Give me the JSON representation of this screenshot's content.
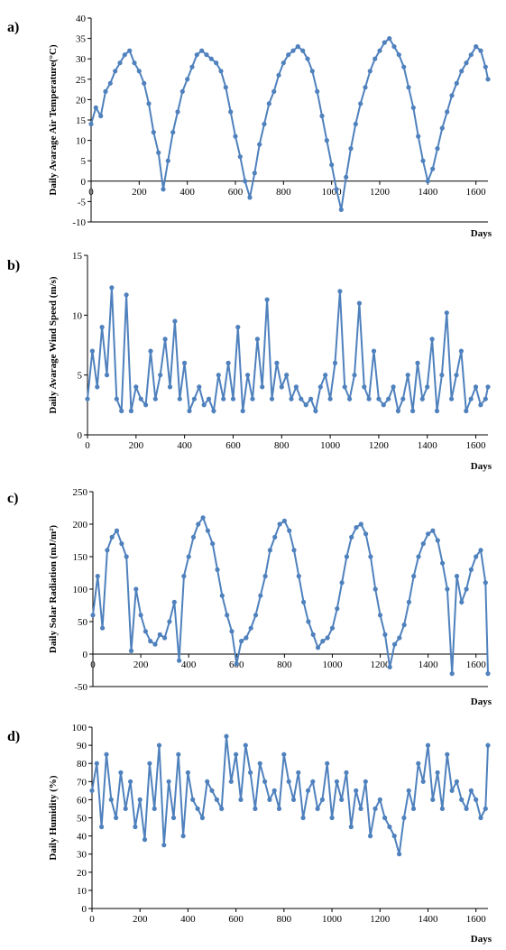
{
  "colors": {
    "series": "#4f81bd",
    "axis": "#000000"
  },
  "chart_data": [
    {
      "type": "line",
      "panel_label": "a)",
      "ylabel": "Daily Avarage Air Temperature(°C)",
      "xlabel": "Days",
      "xlim": [
        0,
        1650
      ],
      "ylim": [
        -10,
        40
      ],
      "xticks": [
        0,
        200,
        400,
        600,
        800,
        1000,
        1200,
        1400,
        1600
      ],
      "yticks": [
        -10,
        -5,
        0,
        5,
        10,
        15,
        20,
        25,
        30,
        35,
        40
      ],
      "zero_line": true,
      "series": [
        {
          "x": [
            0,
            20,
            40,
            60,
            80,
            100,
            120,
            140,
            160,
            180,
            200,
            220,
            240,
            260,
            280,
            300,
            320,
            340,
            360,
            380,
            400,
            420,
            440,
            460,
            480,
            500,
            520,
            540,
            560,
            580,
            600,
            620,
            640,
            660,
            680,
            700,
            720,
            740,
            760,
            780,
            800,
            820,
            840,
            860,
            880,
            900,
            920,
            940,
            960,
            980,
            1000,
            1020,
            1040,
            1060,
            1080,
            1100,
            1120,
            1140,
            1160,
            1180,
            1200,
            1220,
            1240,
            1260,
            1280,
            1300,
            1320,
            1340,
            1360,
            1380,
            1400,
            1420,
            1440,
            1460,
            1480,
            1500,
            1520,
            1540,
            1560,
            1580,
            1600,
            1620,
            1640,
            1650
          ],
          "y": [
            14,
            18,
            16,
            22,
            24,
            27,
            29,
            31,
            32,
            29,
            27,
            24,
            19,
            12,
            7,
            -2,
            5,
            12,
            17,
            22,
            25,
            28,
            31,
            32,
            31,
            30,
            29,
            27,
            23,
            17,
            11,
            6,
            0,
            -4,
            2,
            9,
            14,
            19,
            22,
            26,
            29,
            31,
            32,
            33,
            32,
            30,
            27,
            22,
            16,
            10,
            4,
            -2,
            -7,
            1,
            8,
            14,
            19,
            23,
            27,
            30,
            32,
            34,
            35,
            33,
            31,
            28,
            23,
            18,
            11,
            5,
            0,
            3,
            8,
            13,
            17,
            21,
            24,
            27,
            29,
            31,
            33,
            32,
            28,
            25
          ]
        }
      ]
    },
    {
      "type": "line",
      "panel_label": "b)",
      "ylabel": "Daily Avarage Wind Speed (m/s)",
      "xlabel": "Days",
      "xlim": [
        0,
        1650
      ],
      "ylim": [
        0,
        15
      ],
      "xticks": [
        0,
        200,
        400,
        600,
        800,
        1000,
        1200,
        1400,
        1600
      ],
      "yticks": [
        0,
        5,
        10,
        15
      ],
      "zero_line": false,
      "series": [
        {
          "x": [
            0,
            20,
            40,
            60,
            80,
            100,
            120,
            140,
            160,
            180,
            200,
            220,
            240,
            260,
            280,
            300,
            320,
            340,
            360,
            380,
            400,
            420,
            440,
            460,
            480,
            500,
            520,
            540,
            560,
            580,
            600,
            620,
            640,
            660,
            680,
            700,
            720,
            740,
            760,
            780,
            800,
            820,
            840,
            860,
            880,
            900,
            920,
            940,
            960,
            980,
            1000,
            1020,
            1040,
            1060,
            1080,
            1100,
            1120,
            1140,
            1160,
            1180,
            1200,
            1220,
            1240,
            1260,
            1280,
            1300,
            1320,
            1340,
            1360,
            1380,
            1400,
            1420,
            1440,
            1460,
            1480,
            1500,
            1520,
            1540,
            1560,
            1580,
            1600,
            1620,
            1640,
            1650
          ],
          "y": [
            3,
            7,
            4,
            9,
            5,
            12.3,
            3,
            2,
            11.7,
            2,
            4,
            3,
            2.5,
            7,
            3,
            5,
            8,
            4,
            9.5,
            3,
            6,
            2,
            3,
            4,
            2.5,
            3,
            2,
            5,
            3,
            6,
            3,
            9,
            2,
            5,
            3,
            8,
            4,
            11.3,
            3,
            6,
            4,
            5,
            3,
            4,
            3,
            2.5,
            3,
            2,
            4,
            5,
            3,
            6,
            12,
            4,
            3,
            5,
            11,
            4,
            3,
            7,
            3,
            2.5,
            3,
            4,
            2,
            3,
            5,
            2,
            6,
            3,
            4,
            8,
            2,
            5,
            10.2,
            3,
            5,
            7,
            2,
            3,
            4,
            2.5,
            3,
            4
          ]
        }
      ]
    },
    {
      "type": "line",
      "panel_label": "c)",
      "ylabel": "Daily Solar Radiation (mJ/m²)",
      "xlabel": "Days",
      "xlim": [
        0,
        1650
      ],
      "ylim": [
        -50,
        250
      ],
      "xticks": [
        0,
        200,
        400,
        600,
        800,
        1000,
        1200,
        1400,
        1600
      ],
      "yticks": [
        -50,
        0,
        50,
        100,
        150,
        200,
        250
      ],
      "zero_line": true,
      "series": [
        {
          "x": [
            0,
            20,
            40,
            60,
            80,
            100,
            120,
            140,
            160,
            180,
            200,
            220,
            240,
            260,
            280,
            300,
            320,
            340,
            360,
            380,
            400,
            420,
            440,
            460,
            480,
            500,
            520,
            540,
            560,
            580,
            600,
            620,
            640,
            660,
            680,
            700,
            720,
            740,
            760,
            780,
            800,
            820,
            840,
            860,
            880,
            900,
            920,
            940,
            960,
            980,
            1000,
            1020,
            1040,
            1060,
            1080,
            1100,
            1120,
            1140,
            1160,
            1180,
            1200,
            1220,
            1240,
            1260,
            1280,
            1300,
            1320,
            1340,
            1360,
            1380,
            1400,
            1420,
            1440,
            1460,
            1480,
            1500,
            1520,
            1540,
            1560,
            1580,
            1600,
            1620,
            1640,
            1650
          ],
          "y": [
            60,
            120,
            40,
            160,
            180,
            190,
            170,
            150,
            5,
            100,
            60,
            35,
            20,
            15,
            30,
            25,
            50,
            80,
            -10,
            120,
            150,
            180,
            200,
            210,
            190,
            170,
            130,
            90,
            60,
            35,
            -15,
            20,
            25,
            40,
            60,
            90,
            120,
            160,
            180,
            200,
            205,
            190,
            160,
            120,
            80,
            50,
            30,
            10,
            20,
            25,
            40,
            70,
            110,
            150,
            180,
            195,
            200,
            185,
            150,
            100,
            60,
            30,
            -20,
            15,
            25,
            45,
            80,
            120,
            150,
            170,
            185,
            190,
            175,
            140,
            100,
            -30,
            120,
            80,
            100,
            130,
            150,
            160,
            110,
            -30
          ]
        }
      ]
    },
    {
      "type": "line",
      "panel_label": "d)",
      "ylabel": "Daily Humidity (%)",
      "xlabel": "Days",
      "xlim": [
        0,
        1650
      ],
      "ylim": [
        0,
        100
      ],
      "xticks": [
        0,
        200,
        400,
        600,
        800,
        1000,
        1200,
        1400,
        1600
      ],
      "yticks": [
        0,
        10,
        20,
        30,
        40,
        50,
        60,
        70,
        80,
        90,
        100
      ],
      "zero_line": false,
      "series": [
        {
          "x": [
            0,
            20,
            40,
            60,
            80,
            100,
            120,
            140,
            160,
            180,
            200,
            220,
            240,
            260,
            280,
            300,
            320,
            340,
            360,
            380,
            400,
            420,
            440,
            460,
            480,
            500,
            520,
            540,
            560,
            580,
            600,
            620,
            640,
            660,
            680,
            700,
            720,
            740,
            760,
            780,
            800,
            820,
            840,
            860,
            880,
            900,
            920,
            940,
            960,
            980,
            1000,
            1020,
            1040,
            1060,
            1080,
            1100,
            1120,
            1140,
            1160,
            1180,
            1200,
            1220,
            1240,
            1260,
            1280,
            1300,
            1320,
            1340,
            1360,
            1380,
            1400,
            1420,
            1440,
            1460,
            1480,
            1500,
            1520,
            1540,
            1560,
            1580,
            1600,
            1620,
            1640,
            1650
          ],
          "y": [
            65,
            80,
            45,
            85,
            60,
            50,
            75,
            55,
            70,
            45,
            60,
            38,
            80,
            55,
            90,
            35,
            70,
            50,
            85,
            40,
            75,
            60,
            55,
            50,
            70,
            65,
            60,
            55,
            95,
            70,
            85,
            60,
            90,
            75,
            55,
            80,
            70,
            60,
            65,
            55,
            85,
            70,
            60,
            75,
            50,
            65,
            70,
            55,
            60,
            80,
            50,
            70,
            60,
            75,
            45,
            65,
            55,
            70,
            40,
            55,
            60,
            50,
            45,
            40,
            30,
            50,
            65,
            55,
            80,
            70,
            90,
            60,
            75,
            55,
            85,
            65,
            70,
            60,
            55,
            65,
            60,
            50,
            55,
            90
          ]
        }
      ]
    }
  ]
}
